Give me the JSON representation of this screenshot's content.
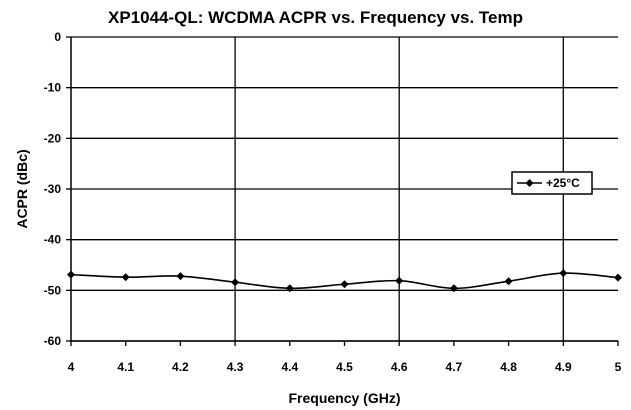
{
  "chart_data": {
    "type": "line",
    "title": "XP1044-QL: WCDMA ACPR vs. Frequency vs. Temp",
    "xlabel": "Frequency (GHz)",
    "ylabel": "ACPR (dBc)",
    "xlim": [
      4,
      5
    ],
    "ylim": [
      -60,
      0
    ],
    "x_ticks": [
      "4",
      "4.1",
      "4.2",
      "4.3",
      "4.4",
      "4.5",
      "4.6",
      "4.7",
      "4.8",
      "4.9",
      "5"
    ],
    "y_ticks": [
      "0",
      "-10",
      "-20",
      "-30",
      "-40",
      "-50",
      "-60"
    ],
    "grid": "major horizontal and vertical",
    "legend_position": "right",
    "series": [
      {
        "name": "+25°C",
        "color": "#000000",
        "marker": "diamond",
        "x": [
          4.0,
          4.1,
          4.2,
          4.3,
          4.4,
          4.5,
          4.6,
          4.7,
          4.8,
          4.9,
          5.0
        ],
        "y": [
          -46.9,
          -47.4,
          -47.2,
          -48.4,
          -49.6,
          -48.8,
          -48.1,
          -49.6,
          -48.2,
          -46.6,
          -47.5
        ]
      }
    ]
  }
}
